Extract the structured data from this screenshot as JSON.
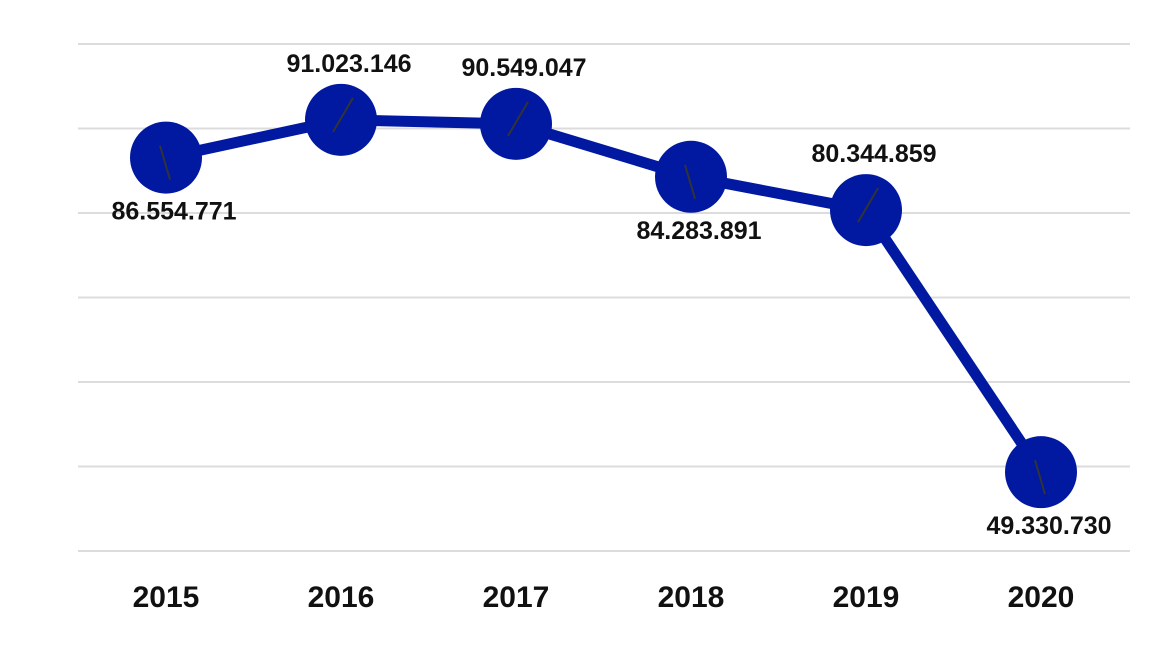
{
  "chart_data": {
    "type": "line",
    "title": "",
    "xlabel": "",
    "ylabel": "",
    "categories": [
      "2015",
      "2016",
      "2017",
      "2018",
      "2019",
      "2020"
    ],
    "series": [
      {
        "name": "",
        "values": [
          86554771,
          91023146,
          90549047,
          84283891,
          80344859,
          49330730
        ],
        "labels": [
          "86.554.771",
          "91.023.146",
          "90.549.047",
          "84.283.891",
          "80.344.859",
          "49.330.730"
        ],
        "label_positions": [
          "below",
          "above",
          "above",
          "below",
          "above",
          "below"
        ]
      }
    ],
    "ylim": [
      40000000,
      100000000
    ],
    "yticks_hidden": true,
    "grid": true,
    "legend": "none",
    "colors": {
      "series": "#0019a0",
      "grid": "#dcdcdc",
      "text": "#111111"
    }
  }
}
